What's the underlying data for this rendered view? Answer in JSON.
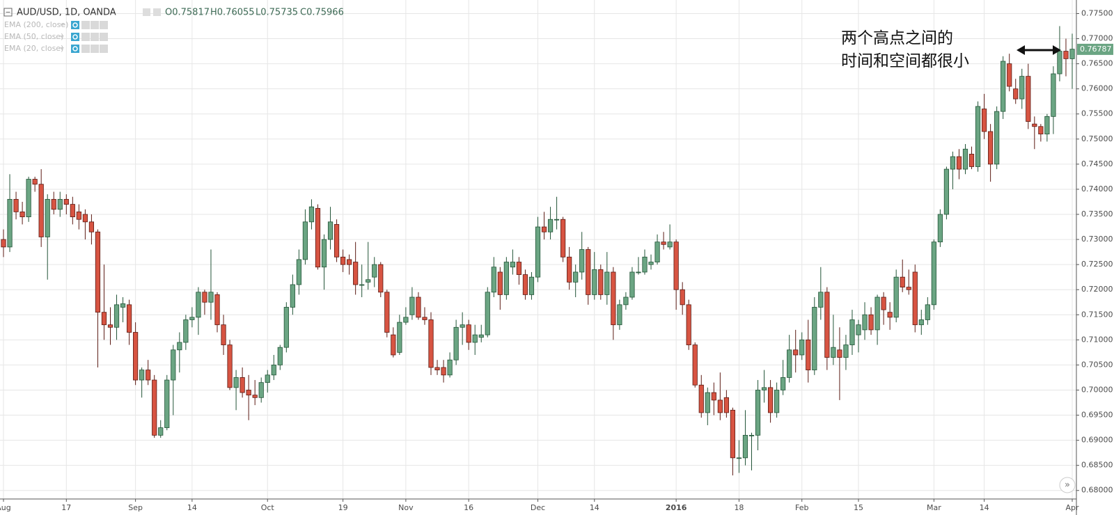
{
  "chart_data": {
    "type": "candlestick",
    "title": "AUD/USD, 1D, OANDA",
    "header_values": [
      "O0.75817",
      "H0.76055",
      "L0.75735",
      "C0.75966"
    ],
    "indicators": [
      "EMA (200, close)",
      "EMA (50, close)",
      "EMA (20, close)"
    ],
    "annotation": [
      "两个高点之间的",
      "时间和空间都很小"
    ],
    "up_color": "#6ba583",
    "down_color": "#d75442",
    "last_price": {
      "value": 0.76787,
      "label": "0.76787"
    },
    "grid": true,
    "ylim": [
      0.6783,
      0.7777
    ],
    "yticks": [
      {
        "value": 0.68,
        "label": "0.68000"
      },
      {
        "value": 0.685,
        "label": "0.68500"
      },
      {
        "value": 0.69,
        "label": "0.69000"
      },
      {
        "value": 0.695,
        "label": "0.69500"
      },
      {
        "value": 0.7,
        "label": "0.70000"
      },
      {
        "value": 0.705,
        "label": "0.70500"
      },
      {
        "value": 0.71,
        "label": "0.71000"
      },
      {
        "value": 0.715,
        "label": "0.71500"
      },
      {
        "value": 0.72,
        "label": "0.72000"
      },
      {
        "value": 0.725,
        "label": "0.72500"
      },
      {
        "value": 0.73,
        "label": "0.73000"
      },
      {
        "value": 0.735,
        "label": "0.73500"
      },
      {
        "value": 0.74,
        "label": "0.74000"
      },
      {
        "value": 0.745,
        "label": "0.74500"
      },
      {
        "value": 0.75,
        "label": "0.75000"
      },
      {
        "value": 0.755,
        "label": "0.75500"
      },
      {
        "value": 0.76,
        "label": "0.76000"
      },
      {
        "value": 0.765,
        "label": "0.76500"
      },
      {
        "value": 0.77,
        "label": "0.77000"
      },
      {
        "value": 0.775,
        "label": "0.77500"
      }
    ],
    "categories": [
      "Aug",
      null,
      null,
      null,
      null,
      null,
      null,
      null,
      null,
      null,
      "17",
      null,
      null,
      null,
      null,
      null,
      null,
      null,
      null,
      null,
      null,
      "Sep",
      null,
      null,
      null,
      null,
      null,
      null,
      null,
      null,
      "14",
      null,
      null,
      null,
      null,
      null,
      null,
      null,
      null,
      null,
      null,
      null,
      "Oct",
      null,
      null,
      null,
      null,
      null,
      null,
      null,
      null,
      null,
      null,
      null,
      "19",
      null,
      null,
      null,
      null,
      null,
      null,
      null,
      null,
      null,
      "Nov",
      null,
      null,
      null,
      null,
      null,
      null,
      null,
      null,
      null,
      "16",
      null,
      null,
      null,
      null,
      null,
      null,
      null,
      null,
      null,
      null,
      "Dec",
      null,
      null,
      null,
      null,
      null,
      null,
      null,
      null,
      "14",
      null,
      null,
      null,
      null,
      null,
      null,
      null,
      null,
      null,
      null,
      null,
      null,
      "2016",
      null,
      null,
      null,
      null,
      null,
      null,
      null,
      null,
      null,
      "18",
      null,
      null,
      null,
      null,
      null,
      null,
      null,
      null,
      null,
      "Feb",
      null,
      null,
      null,
      null,
      null,
      null,
      null,
      null,
      "15",
      null,
      null,
      null,
      null,
      null,
      null,
      null,
      null,
      null,
      null,
      null,
      "Mar",
      null,
      null,
      null,
      null,
      null,
      null,
      null,
      "14",
      null,
      null,
      null,
      null,
      null,
      null,
      null,
      null,
      null,
      null,
      null,
      null,
      null,
      "Apr"
    ],
    "candles": [
      [
        0.73,
        0.732,
        0.7265,
        0.7285
      ],
      [
        0.7285,
        0.743,
        0.7275,
        0.738
      ],
      [
        0.738,
        0.7395,
        0.734,
        0.7355
      ],
      [
        0.7355,
        0.7375,
        0.733,
        0.7345
      ],
      [
        0.7345,
        0.7425,
        0.7335,
        0.742
      ],
      [
        0.742,
        0.7425,
        0.7395,
        0.741
      ],
      [
        0.741,
        0.744,
        0.7285,
        0.7305
      ],
      [
        0.7305,
        0.739,
        0.722,
        0.738
      ],
      [
        0.738,
        0.7395,
        0.735,
        0.736
      ],
      [
        0.736,
        0.7395,
        0.7345,
        0.738
      ],
      [
        0.738,
        0.739,
        0.735,
        0.737
      ],
      [
        0.737,
        0.7385,
        0.733,
        0.7345
      ],
      [
        0.7355,
        0.737,
        0.732,
        0.734
      ],
      [
        0.735,
        0.736,
        0.73,
        0.7335
      ],
      [
        0.7335,
        0.735,
        0.729,
        0.7315
      ],
      [
        0.7315,
        0.732,
        0.7045,
        0.7155
      ],
      [
        0.7155,
        0.725,
        0.71,
        0.713
      ],
      [
        0.713,
        0.7165,
        0.709,
        0.7125
      ],
      [
        0.7125,
        0.719,
        0.71,
        0.717
      ],
      [
        0.7165,
        0.7185,
        0.7135,
        0.7172
      ],
      [
        0.717,
        0.718,
        0.709,
        0.7115
      ],
      [
        0.7115,
        0.7135,
        0.701,
        0.702
      ],
      [
        0.702,
        0.7045,
        0.6985,
        0.704
      ],
      [
        0.704,
        0.706,
        0.701,
        0.702
      ],
      [
        0.702,
        0.703,
        0.6905,
        0.691
      ],
      [
        0.691,
        0.694,
        0.6905,
        0.6925
      ],
      [
        0.6925,
        0.703,
        0.692,
        0.702
      ],
      [
        0.702,
        0.709,
        0.695,
        0.708
      ],
      [
        0.708,
        0.7115,
        0.7035,
        0.7095
      ],
      [
        0.7095,
        0.715,
        0.708,
        0.714
      ],
      [
        0.714,
        0.7165,
        0.7125,
        0.7145
      ],
      [
        0.7145,
        0.7205,
        0.711,
        0.7195
      ],
      [
        0.7195,
        0.72,
        0.715,
        0.7175
      ],
      [
        0.7175,
        0.728,
        0.714,
        0.7195
      ],
      [
        0.719,
        0.7195,
        0.7115,
        0.713
      ],
      [
        0.713,
        0.715,
        0.707,
        0.709
      ],
      [
        0.709,
        0.71,
        0.7,
        0.7005
      ],
      [
        0.7005,
        0.704,
        0.696,
        0.7025
      ],
      [
        0.7025,
        0.7045,
        0.6985,
        0.6995
      ],
      [
        0.7,
        0.703,
        0.694,
        0.699
      ],
      [
        0.699,
        0.702,
        0.697,
        0.6985
      ],
      [
        0.6985,
        0.7025,
        0.6975,
        0.7015
      ],
      [
        0.7015,
        0.704,
        0.6995,
        0.703
      ],
      [
        0.703,
        0.707,
        0.702,
        0.705
      ],
      [
        0.705,
        0.709,
        0.704,
        0.7085
      ],
      [
        0.7085,
        0.7175,
        0.7075,
        0.7165
      ],
      [
        0.7165,
        0.723,
        0.715,
        0.721
      ],
      [
        0.721,
        0.728,
        0.719,
        0.726
      ],
      [
        0.726,
        0.736,
        0.725,
        0.7335
      ],
      [
        0.7335,
        0.738,
        0.732,
        0.7365
      ],
      [
        0.7362,
        0.737,
        0.724,
        0.7245
      ],
      [
        0.7245,
        0.731,
        0.72,
        0.73
      ],
      [
        0.73,
        0.7365,
        0.728,
        0.7335
      ],
      [
        0.733,
        0.734,
        0.7255,
        0.7265
      ],
      [
        0.7265,
        0.728,
        0.7235,
        0.725
      ],
      [
        0.726,
        0.727,
        0.723,
        0.725
      ],
      [
        0.7255,
        0.7295,
        0.719,
        0.721
      ],
      [
        0.721,
        0.725,
        0.7185,
        0.721
      ],
      [
        0.7215,
        0.7295,
        0.72,
        0.722
      ],
      [
        0.7225,
        0.7265,
        0.7205,
        0.725
      ],
      [
        0.725,
        0.7255,
        0.7185,
        0.7195
      ],
      [
        0.7195,
        0.72,
        0.7105,
        0.7115
      ],
      [
        0.711,
        0.7125,
        0.7065,
        0.707
      ],
      [
        0.7075,
        0.715,
        0.707,
        0.7135
      ],
      [
        0.7135,
        0.7165,
        0.713,
        0.7145
      ],
      [
        0.715,
        0.7205,
        0.714,
        0.7185
      ],
      [
        0.7185,
        0.7195,
        0.714,
        0.7145
      ],
      [
        0.7145,
        0.7165,
        0.713,
        0.714
      ],
      [
        0.714,
        0.7155,
        0.703,
        0.7045
      ],
      [
        0.7045,
        0.706,
        0.703,
        0.704
      ],
      [
        0.7045,
        0.706,
        0.7015,
        0.703
      ],
      [
        0.703,
        0.7075,
        0.7025,
        0.706
      ],
      [
        0.706,
        0.714,
        0.705,
        0.7125
      ],
      [
        0.7125,
        0.7155,
        0.709,
        0.713
      ],
      [
        0.713,
        0.714,
        0.708,
        0.7095
      ],
      [
        0.7095,
        0.713,
        0.707,
        0.711
      ],
      [
        0.7105,
        0.713,
        0.7095,
        0.711
      ],
      [
        0.711,
        0.7205,
        0.7105,
        0.7195
      ],
      [
        0.7195,
        0.7265,
        0.7185,
        0.7245
      ],
      [
        0.7235,
        0.7245,
        0.716,
        0.719
      ],
      [
        0.719,
        0.7265,
        0.718,
        0.7255
      ],
      [
        0.7245,
        0.728,
        0.723,
        0.7255
      ],
      [
        0.7255,
        0.7265,
        0.721,
        0.723
      ],
      [
        0.723,
        0.724,
        0.718,
        0.719
      ],
      [
        0.719,
        0.7235,
        0.718,
        0.7225
      ],
      [
        0.7225,
        0.7345,
        0.7215,
        0.7325
      ],
      [
        0.7325,
        0.7355,
        0.73,
        0.7315
      ],
      [
        0.7315,
        0.7365,
        0.73,
        0.734
      ],
      [
        0.734,
        0.7385,
        0.732,
        0.734
      ],
      [
        0.734,
        0.7345,
        0.7255,
        0.7265
      ],
      [
        0.7265,
        0.7285,
        0.72,
        0.7215
      ],
      [
        0.7215,
        0.725,
        0.7185,
        0.7235
      ],
      [
        0.7235,
        0.7315,
        0.722,
        0.728
      ],
      [
        0.728,
        0.7285,
        0.717,
        0.719
      ],
      [
        0.719,
        0.7275,
        0.718,
        0.724
      ],
      [
        0.724,
        0.725,
        0.718,
        0.719
      ],
      [
        0.719,
        0.7275,
        0.717,
        0.7235
      ],
      [
        0.7235,
        0.7245,
        0.71,
        0.713
      ],
      [
        0.713,
        0.718,
        0.712,
        0.717
      ],
      [
        0.717,
        0.7195,
        0.716,
        0.7185
      ],
      [
        0.7185,
        0.7245,
        0.718,
        0.7235
      ],
      [
        0.7235,
        0.7265,
        0.723,
        0.7235
      ],
      [
        0.7235,
        0.728,
        0.723,
        0.7265
      ],
      [
        0.725,
        0.727,
        0.724,
        0.7255
      ],
      [
        0.7255,
        0.731,
        0.725,
        0.7295
      ],
      [
        0.7295,
        0.7315,
        0.728,
        0.729
      ],
      [
        0.7285,
        0.733,
        0.728,
        0.7295
      ],
      [
        0.7295,
        0.73,
        0.716,
        0.72
      ],
      [
        0.72,
        0.7215,
        0.715,
        0.717
      ],
      [
        0.717,
        0.718,
        0.708,
        0.709
      ],
      [
        0.709,
        0.7095,
        0.7005,
        0.701
      ],
      [
        0.701,
        0.703,
        0.6945,
        0.6955
      ],
      [
        0.6955,
        0.7005,
        0.693,
        0.6995
      ],
      [
        0.6995,
        0.7015,
        0.695,
        0.698
      ],
      [
        0.698,
        0.7035,
        0.694,
        0.6955
      ],
      [
        0.6985,
        0.7,
        0.6945,
        0.6955
      ],
      [
        0.696,
        0.6965,
        0.683,
        0.6865
      ],
      [
        0.6865,
        0.69,
        0.6835,
        0.6865
      ],
      [
        0.6865,
        0.696,
        0.685,
        0.691
      ],
      [
        0.691,
        0.6915,
        0.684,
        0.691
      ],
      [
        0.691,
        0.702,
        0.688,
        0.7
      ],
      [
        0.7,
        0.704,
        0.6975,
        0.7005
      ],
      [
        0.7005,
        0.702,
        0.6935,
        0.6955
      ],
      [
        0.6955,
        0.7015,
        0.6945,
        0.7
      ],
      [
        0.7,
        0.706,
        0.699,
        0.7025
      ],
      [
        0.7025,
        0.711,
        0.7015,
        0.708
      ],
      [
        0.708,
        0.712,
        0.7035,
        0.707
      ],
      [
        0.707,
        0.7115,
        0.706,
        0.71
      ],
      [
        0.71,
        0.714,
        0.7015,
        0.704
      ],
      [
        0.704,
        0.7185,
        0.703,
        0.7165
      ],
      [
        0.7165,
        0.7245,
        0.714,
        0.7195
      ],
      [
        0.7195,
        0.7205,
        0.704,
        0.7065
      ],
      [
        0.7065,
        0.715,
        0.705,
        0.7085
      ],
      [
        0.708,
        0.7125,
        0.698,
        0.7065
      ],
      [
        0.7065,
        0.711,
        0.704,
        0.709
      ],
      [
        0.709,
        0.716,
        0.707,
        0.714
      ],
      [
        0.711,
        0.714,
        0.7075,
        0.713
      ],
      [
        0.712,
        0.7175,
        0.71,
        0.715
      ],
      [
        0.715,
        0.7165,
        0.711,
        0.712
      ],
      [
        0.712,
        0.719,
        0.709,
        0.7185
      ],
      [
        0.7185,
        0.7195,
        0.713,
        0.716
      ],
      [
        0.7155,
        0.7175,
        0.712,
        0.7145
      ],
      [
        0.7145,
        0.724,
        0.7135,
        0.7225
      ],
      [
        0.7225,
        0.726,
        0.7195,
        0.7205
      ],
      [
        0.7205,
        0.724,
        0.719,
        0.72
      ],
      [
        0.7235,
        0.725,
        0.7115,
        0.713
      ],
      [
        0.713,
        0.716,
        0.711,
        0.714
      ],
      [
        0.714,
        0.7185,
        0.713,
        0.717
      ],
      [
        0.717,
        0.73,
        0.716,
        0.7295
      ],
      [
        0.7295,
        0.736,
        0.7285,
        0.735
      ],
      [
        0.735,
        0.7445,
        0.734,
        0.744
      ],
      [
        0.744,
        0.7475,
        0.74,
        0.7465
      ],
      [
        0.7465,
        0.748,
        0.742,
        0.744
      ],
      [
        0.744,
        0.749,
        0.743,
        0.748
      ],
      [
        0.747,
        0.7485,
        0.744,
        0.7445
      ],
      [
        0.7445,
        0.7575,
        0.7435,
        0.7565
      ],
      [
        0.756,
        0.759,
        0.75,
        0.7515
      ],
      [
        0.7515,
        0.753,
        0.7415,
        0.745
      ],
      [
        0.745,
        0.7565,
        0.744,
        0.7555
      ],
      [
        0.7555,
        0.7665,
        0.754,
        0.7655
      ],
      [
        0.765,
        0.767,
        0.7595,
        0.7605
      ],
      [
        0.76,
        0.762,
        0.757,
        0.758
      ],
      [
        0.758,
        0.764,
        0.756,
        0.7625
      ],
      [
        0.7625,
        0.765,
        0.752,
        0.7535
      ],
      [
        0.753,
        0.7545,
        0.748,
        0.7525
      ],
      [
        0.7525,
        0.753,
        0.7495,
        0.751
      ],
      [
        0.751,
        0.755,
        0.7495,
        0.7545
      ],
      [
        0.7545,
        0.7645,
        0.751,
        0.763
      ],
      [
        0.763,
        0.7725,
        0.7615,
        0.7675
      ],
      [
        0.7675,
        0.77,
        0.7625,
        0.766
      ],
      [
        0.766,
        0.771,
        0.76,
        0.7679
      ]
    ]
  }
}
